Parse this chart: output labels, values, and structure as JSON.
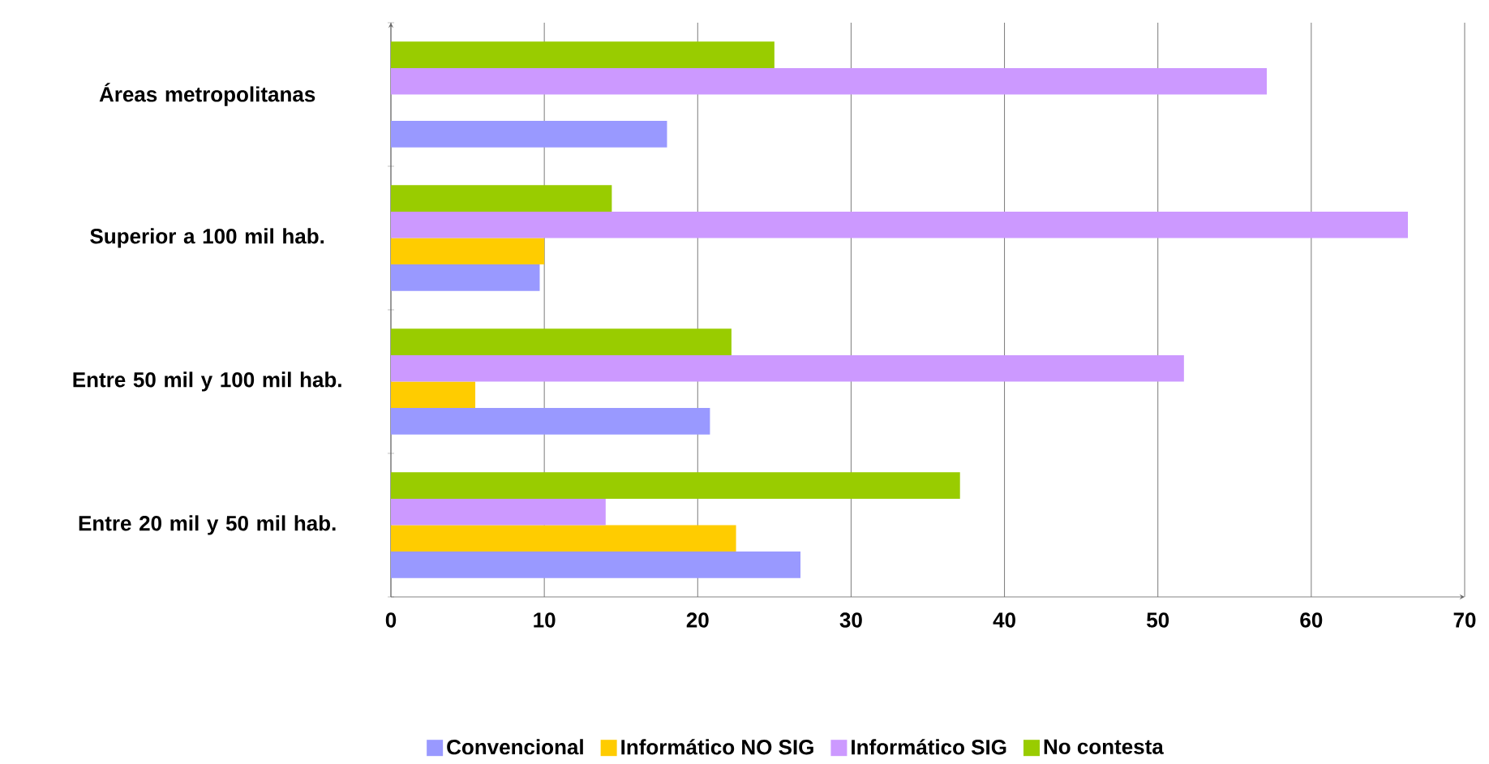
{
  "chart_data": {
    "type": "bar",
    "orientation": "horizontal",
    "categories": [
      "Áreas metropolitanas",
      "Superior a 100 mil hab.",
      "Entre 50 mil y 100 mil hab.",
      "Entre 20 mil y 50 mil hab."
    ],
    "series": [
      {
        "name": "Convencional",
        "color": "#9999ff",
        "values": [
          18.0,
          9.7,
          20.8,
          26.7
        ]
      },
      {
        "name": "Informático NO SIG",
        "color": "#ffcc00",
        "values": [
          null,
          10.0,
          5.5,
          22.5
        ]
      },
      {
        "name": "Informático SIG",
        "color": "#cc99ff",
        "values": [
          57.1,
          66.3,
          51.7,
          14.0
        ]
      },
      {
        "name": "No contesta",
        "color": "#99cc00",
        "values": [
          25.0,
          14.4,
          22.2,
          37.1
        ]
      }
    ],
    "xlim": [
      0,
      70
    ],
    "xticks": [
      0,
      10,
      20,
      30,
      40,
      50,
      60,
      70
    ],
    "grid": "x",
    "legend": "bottom"
  }
}
